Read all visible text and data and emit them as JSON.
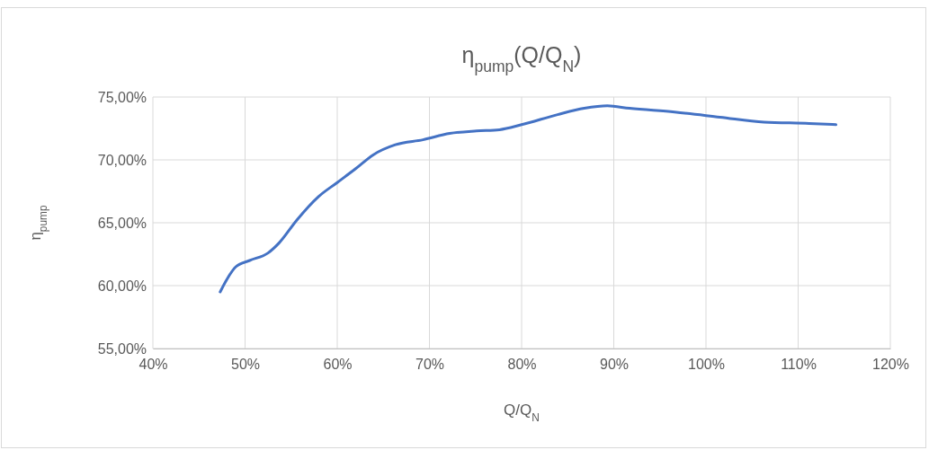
{
  "chart_data": {
    "type": "line",
    "title": "η$_{pump}$(Q/Q$_{N}$)",
    "xlabel": "Q/Q$_{N}$",
    "ylabel": "η$_{pump}$",
    "x": [
      47.3,
      49.0,
      50.5,
      52.5,
      53.7,
      55.6,
      58.0,
      60.0,
      62.0,
      63.9,
      66.3,
      69.3,
      72.2,
      75.1,
      77.6,
      80.0,
      83.9,
      86.8,
      89.3,
      91.7,
      96.6,
      101.5,
      106.3,
      111.2,
      114.1
    ],
    "series": [
      {
        "color": "#4472c4",
        "values": [
          59.5,
          61.5,
          62.0,
          62.6,
          63.4,
          65.2,
          67.1,
          68.2,
          69.3,
          70.4,
          71.2,
          71.6,
          72.1,
          72.3,
          72.4,
          72.8,
          73.6,
          74.1,
          74.3,
          74.1,
          73.8,
          73.4,
          73.0,
          72.9,
          72.8
        ]
      }
    ],
    "xlim": [
      40,
      120
    ],
    "xticks": [
      {
        "value": 40,
        "label": "40%"
      },
      {
        "value": 50,
        "label": "50%"
      },
      {
        "value": 60,
        "label": "60%"
      },
      {
        "value": 70,
        "label": "70%"
      },
      {
        "value": 80,
        "label": "80%"
      },
      {
        "value": 90,
        "label": "90%"
      },
      {
        "value": 100,
        "label": "100%"
      },
      {
        "value": 110,
        "label": "110%"
      },
      {
        "value": 120,
        "label": "120%"
      }
    ],
    "ylim": [
      55,
      75
    ],
    "yticks": [
      {
        "value": 55,
        "label": "55,00%"
      },
      {
        "value": 60,
        "label": "60,00%"
      },
      {
        "value": 65,
        "label": "65,00%"
      },
      {
        "value": 70,
        "label": "70,00%"
      },
      {
        "value": 75,
        "label": "75,00%"
      }
    ],
    "grid": true,
    "marker": "none",
    "line_style": "solid"
  }
}
